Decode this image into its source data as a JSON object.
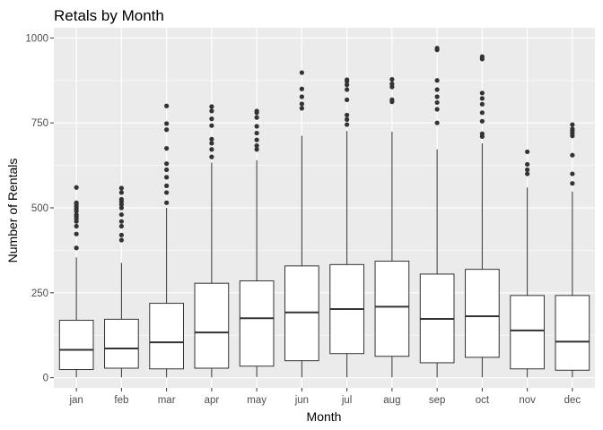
{
  "chart_data": {
    "type": "boxplot",
    "title": "Retals by Month",
    "xlabel": "Month",
    "ylabel": "Number of Rentals",
    "categories": [
      "jan",
      "feb",
      "mar",
      "apr",
      "may",
      "jun",
      "jul",
      "aug",
      "sep",
      "oct",
      "nov",
      "dec"
    ],
    "yticks": [
      0,
      250,
      500,
      750,
      1000
    ],
    "ylim": [
      -30,
      1030
    ],
    "grid": true,
    "legend": "none",
    "boxes": [
      {
        "category": "jan",
        "lower_whisker": 1,
        "q1": 24,
        "median": 82,
        "q3": 169,
        "upper_whisker": 354,
        "outliers": [
          382,
          423,
          446,
          460,
          468,
          475,
          480,
          490,
          497,
          503,
          510,
          515,
          560
        ]
      },
      {
        "category": "feb",
        "lower_whisker": 1,
        "q1": 28,
        "median": 86,
        "q3": 172,
        "upper_whisker": 338,
        "outliers": [
          405,
          420,
          446,
          460,
          480,
          500,
          510,
          518,
          525,
          545,
          558
        ]
      },
      {
        "category": "mar",
        "lower_whisker": 1,
        "q1": 26,
        "median": 104,
        "q3": 219,
        "upper_whisker": 500,
        "outliers": [
          515,
          545,
          565,
          590,
          612,
          630,
          675,
          730,
          748,
          800
        ]
      },
      {
        "category": "apr",
        "lower_whisker": 1,
        "q1": 28,
        "median": 133,
        "q3": 278,
        "upper_whisker": 633,
        "outliers": [
          650,
          672,
          690,
          702,
          742,
          762,
          785,
          798
        ]
      },
      {
        "category": "may",
        "lower_whisker": 2,
        "q1": 34,
        "median": 175,
        "q3": 285,
        "upper_whisker": 640,
        "outliers": [
          672,
          683,
          700,
          720,
          740,
          766,
          780,
          785
        ]
      },
      {
        "category": "jun",
        "lower_whisker": 1,
        "q1": 50,
        "median": 192,
        "q3": 329,
        "upper_whisker": 712,
        "outliers": [
          793,
          806,
          827,
          850,
          898
        ]
      },
      {
        "category": "jul",
        "lower_whisker": 1,
        "q1": 71,
        "median": 202,
        "q3": 333,
        "upper_whisker": 726,
        "outliers": [
          745,
          760,
          773,
          818,
          848,
          862,
          872,
          877
        ]
      },
      {
        "category": "aug",
        "lower_whisker": 1,
        "q1": 63,
        "median": 209,
        "q3": 343,
        "upper_whisker": 724,
        "outliers": [
          812,
          818,
          856,
          865,
          878
        ]
      },
      {
        "category": "sep",
        "lower_whisker": 1,
        "q1": 44,
        "median": 173,
        "q3": 305,
        "upper_whisker": 672,
        "outliers": [
          750,
          790,
          810,
          827,
          848,
          875,
          965,
          970
        ]
      },
      {
        "category": "oct",
        "lower_whisker": 1,
        "q1": 60,
        "median": 181,
        "q3": 319,
        "upper_whisker": 690,
        "outliers": [
          710,
          718,
          755,
          780,
          805,
          822,
          838,
          938,
          945
        ]
      },
      {
        "category": "nov",
        "lower_whisker": 1,
        "q1": 26,
        "median": 139,
        "q3": 242,
        "upper_whisker": 560,
        "outliers": [
          600,
          612,
          628,
          665
        ]
      },
      {
        "category": "dec",
        "lower_whisker": 1,
        "q1": 22,
        "median": 106,
        "q3": 242,
        "upper_whisker": 548,
        "outliers": [
          572,
          600,
          655,
          712,
          720,
          727,
          732,
          745
        ]
      }
    ]
  },
  "colors": {
    "panel_background": "#ebebeb",
    "grid_major": "#ffffff",
    "box_fill": "#ffffff",
    "box_stroke": "#333333",
    "outlier": "#333333",
    "tick": "#333333",
    "tick_label": "#4d4d4d"
  }
}
